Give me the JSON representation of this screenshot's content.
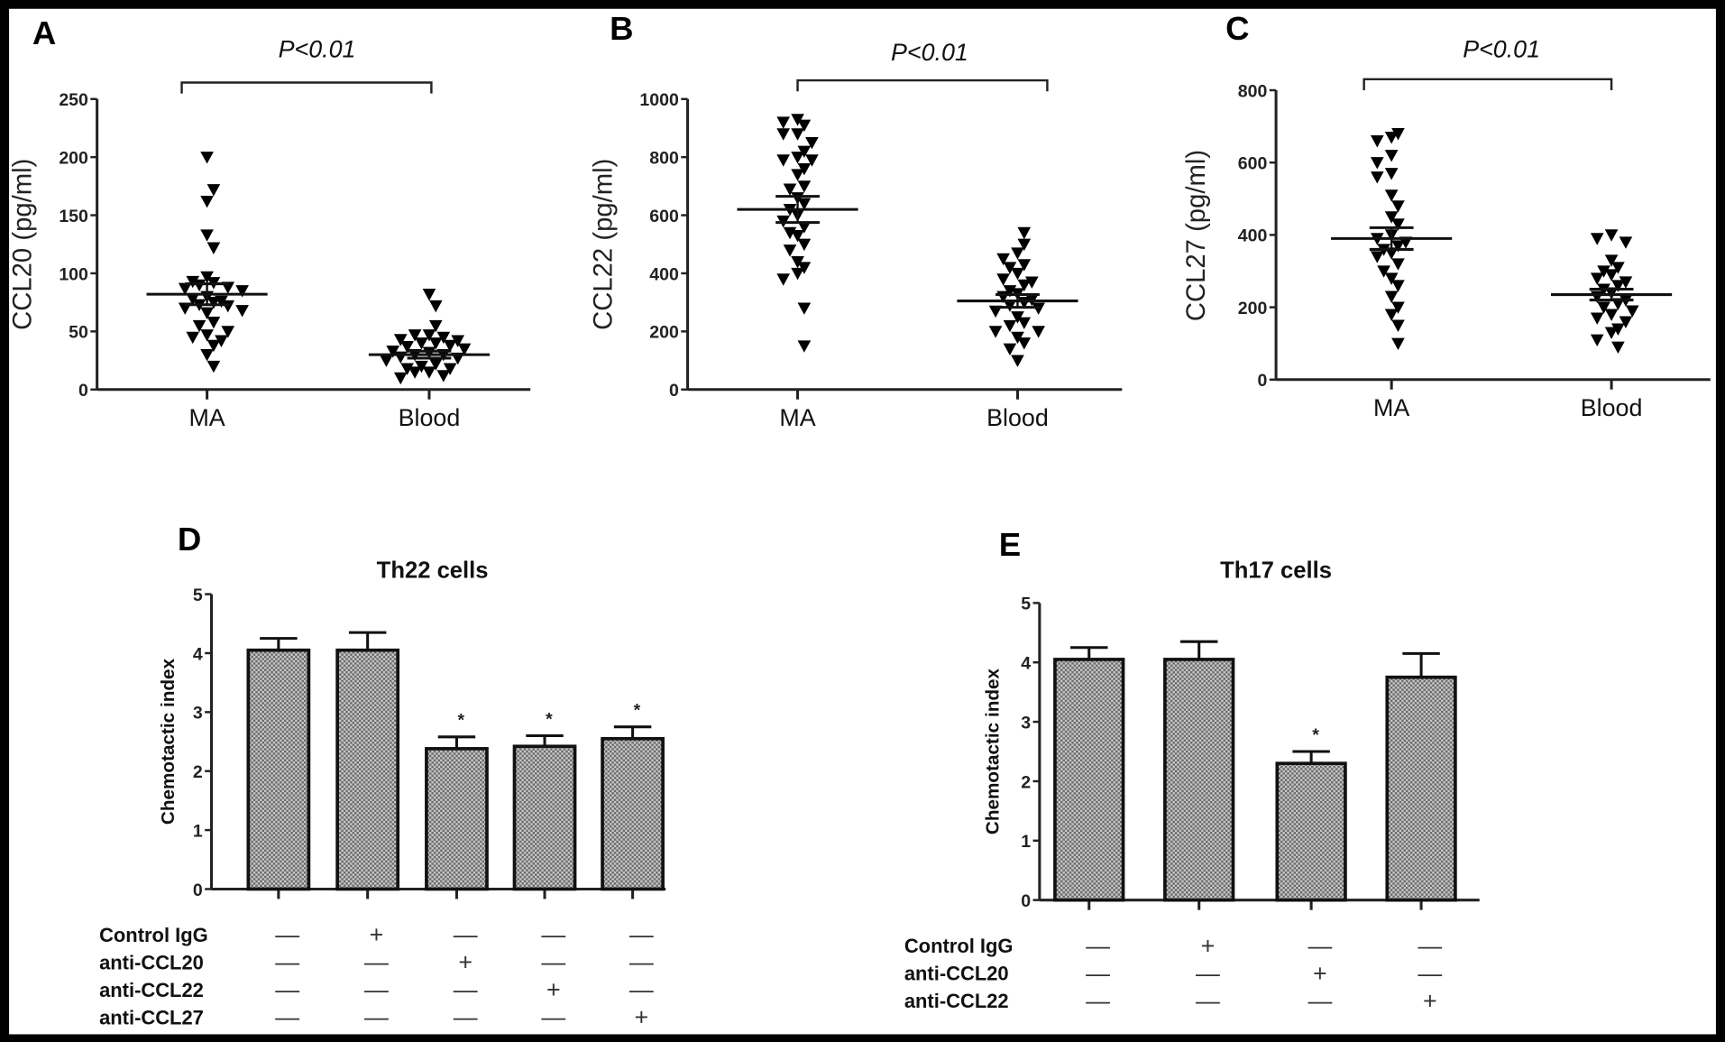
{
  "chart_data": [
    {
      "panel": "A",
      "type": "scatter",
      "ylabel": "CCL20 (pg/ml)",
      "ylim": [
        0,
        250
      ],
      "yticks": [
        0,
        50,
        100,
        150,
        200,
        250
      ],
      "categories": [
        "MA",
        "Blood"
      ],
      "marker": "down-triangle",
      "annotation": "P<0.01",
      "series": [
        {
          "category": "MA",
          "values": [
            200,
            172,
            162,
            133,
            122,
            97,
            93,
            92,
            90,
            88,
            87,
            85,
            80,
            78,
            76,
            75,
            73,
            72,
            70,
            68,
            66,
            58,
            55,
            50,
            47,
            45,
            42,
            38,
            30,
            20
          ],
          "mean": 82,
          "sem": 9
        },
        {
          "category": "Blood",
          "values": [
            82,
            72,
            55,
            47,
            47,
            45,
            43,
            42,
            40,
            40,
            38,
            37,
            35,
            33,
            32,
            30,
            30,
            28,
            27,
            25,
            22,
            20,
            18,
            18,
            15,
            15,
            12,
            10
          ],
          "mean": 30,
          "sem": 3
        }
      ]
    },
    {
      "panel": "B",
      "type": "scatter",
      "ylabel": "CCL22  (pg/ml)",
      "ylim": [
        0,
        1000
      ],
      "yticks": [
        0,
        200,
        400,
        600,
        800,
        1000
      ],
      "categories": [
        "MA",
        "Blood"
      ],
      "marker": "down-triangle",
      "annotation": "P<0.01",
      "series": [
        {
          "category": "MA",
          "values": [
            930,
            920,
            910,
            880,
            880,
            850,
            820,
            800,
            790,
            790,
            760,
            740,
            700,
            690,
            660,
            640,
            620,
            600,
            580,
            560,
            540,
            530,
            500,
            480,
            440,
            420,
            400,
            380,
            280,
            150
          ],
          "mean": 620,
          "sem": 45
        },
        {
          "category": "Blood",
          "values": [
            540,
            500,
            470,
            450,
            430,
            420,
            400,
            380,
            370,
            360,
            340,
            330,
            320,
            310,
            300,
            290,
            280,
            270,
            250,
            230,
            220,
            200,
            200,
            180,
            160,
            140,
            100
          ],
          "mean": 305,
          "sem": 22
        }
      ]
    },
    {
      "panel": "C",
      "type": "scatter",
      "ylabel": "CCL27  (pg/ml)",
      "ylim": [
        0,
        800
      ],
      "yticks": [
        0,
        200,
        400,
        600,
        800
      ],
      "categories": [
        "MA",
        "Blood"
      ],
      "marker": "down-triangle",
      "annotation": "P<0.01",
      "series": [
        {
          "category": "MA",
          "values": [
            680,
            670,
            660,
            620,
            600,
            570,
            560,
            510,
            480,
            450,
            430,
            400,
            390,
            380,
            370,
            360,
            350,
            340,
            320,
            300,
            280,
            260,
            230,
            200,
            180,
            150,
            100
          ],
          "mean": 390,
          "sem": 30
        },
        {
          "category": "Blood",
          "values": [
            400,
            390,
            380,
            330,
            310,
            300,
            290,
            280,
            270,
            260,
            250,
            240,
            230,
            220,
            210,
            200,
            190,
            180,
            170,
            160,
            140,
            130,
            110,
            90
          ],
          "mean": 235,
          "sem": 15
        }
      ]
    },
    {
      "panel": "D",
      "type": "bar",
      "title": "Th22 cells",
      "ylabel": "Chemotactic index",
      "ylim": [
        0,
        5
      ],
      "yticks": [
        0,
        1,
        2,
        3,
        4,
        5
      ],
      "values": [
        4.05,
        4.05,
        2.38,
        2.42,
        2.55
      ],
      "errors": [
        0.2,
        0.3,
        0.2,
        0.18,
        0.2
      ],
      "significant": [
        false,
        false,
        true,
        true,
        true
      ],
      "significance_marker": "*",
      "treatments": [
        {
          "label": "Control IgG",
          "signs": [
            "—",
            "+",
            "—",
            "—",
            "—"
          ]
        },
        {
          "label": "anti-CCL20",
          "signs": [
            "—",
            "—",
            "+",
            "—",
            "—"
          ]
        },
        {
          "label": "anti-CCL22",
          "signs": [
            "—",
            "—",
            "—",
            "+",
            "—"
          ]
        },
        {
          "label": "anti-CCL27",
          "signs": [
            "—",
            "—",
            "—",
            "—",
            "+"
          ]
        }
      ]
    },
    {
      "panel": "E",
      "type": "bar",
      "title": "Th17 cells",
      "ylabel": "Chemotactic index",
      "ylim": [
        0,
        5
      ],
      "yticks": [
        0,
        1,
        2,
        3,
        4,
        5
      ],
      "values": [
        4.05,
        4.05,
        2.3,
        3.75
      ],
      "errors": [
        0.2,
        0.3,
        0.2,
        0.4
      ],
      "significant": [
        false,
        false,
        true,
        false
      ],
      "significance_marker": "*",
      "treatments": [
        {
          "label": "Control IgG",
          "signs": [
            "—",
            "+",
            "—",
            "—"
          ]
        },
        {
          "label": "anti-CCL20",
          "signs": [
            "—",
            "—",
            "+",
            "—"
          ]
        },
        {
          "label": "anti-CCL22",
          "signs": [
            "—",
            "—",
            "—",
            "+"
          ]
        }
      ]
    }
  ],
  "colors": {
    "frame": "#000000",
    "background": "#ffffff",
    "ink": "#111111",
    "bar_fill": "#9a9a9a"
  }
}
